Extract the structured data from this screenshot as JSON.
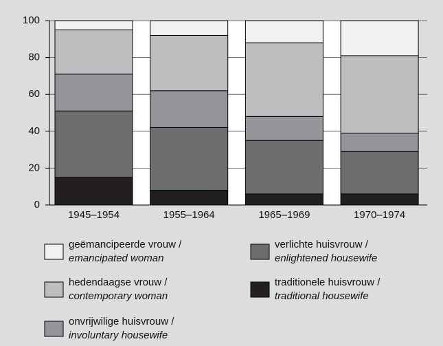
{
  "chart_data": {
    "type": "stacked_bar",
    "categories": [
      "1945–1954",
      "1955–1964",
      "1965–1969",
      "1970–1974"
    ],
    "series": [
      {
        "name": "geëmancipeerde vrouw /",
        "name_en": "emancipated woman",
        "color": "#f1f1f2",
        "values": [
          5,
          8,
          12,
          19
        ]
      },
      {
        "name": "hedendaagse vrouw /",
        "name_en": "contemporary woman",
        "color": "#bcbec0",
        "values": [
          24,
          30,
          40,
          42
        ]
      },
      {
        "name": "onvrijwilige huisvrouw /",
        "name_en": "involuntary housewife",
        "color": "#939598",
        "values": [
          20,
          20,
          13,
          10
        ]
      },
      {
        "name": "verlichte huisvrouw /",
        "name_en": "enlightened housewife",
        "color": "#6d6e70",
        "values": [
          36,
          34,
          29,
          23
        ]
      },
      {
        "name": "traditionele huisvrouw /",
        "name_en": "traditional housewife",
        "color": "#231f20",
        "values": [
          15,
          8,
          6,
          6
        ]
      }
    ],
    "ylim": [
      0,
      100
    ],
    "yticks": [
      0,
      20,
      40,
      60,
      80,
      100
    ],
    "grid": true
  }
}
